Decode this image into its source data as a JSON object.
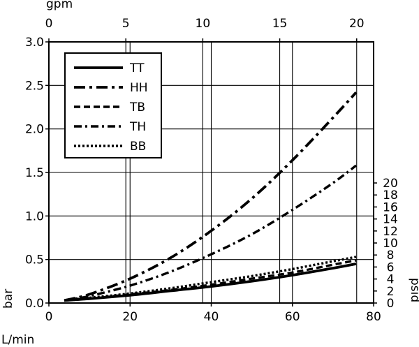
{
  "chart_data": {
    "type": "line",
    "xlabel": "L/min",
    "ylabel": "bar",
    "x2label": "gpm",
    "y2label": "psid",
    "xlim": [
      0,
      80
    ],
    "ylim": [
      0,
      3.0
    ],
    "x2lim": [
      0,
      21.1
    ],
    "y2lim": [
      0,
      43.5
    ],
    "grid": true,
    "legend_position": "top-left",
    "x_ticks": [
      "0",
      "20",
      "40",
      "60",
      "80"
    ],
    "y_ticks": [
      "0.0",
      "0.5",
      "1.0",
      "1.5",
      "2.0",
      "2.5",
      "3.0"
    ],
    "x2_ticks": [
      "0",
      "5",
      "10",
      "15",
      "20"
    ],
    "y2_ticks": [
      "0",
      "2",
      "4",
      "6",
      "8",
      "10",
      "12",
      "14",
      "16",
      "18",
      "20"
    ],
    "series": [
      {
        "name": "TT",
        "dash": "solid",
        "x": [
          3.8,
          10,
          20,
          30,
          40,
          50,
          60,
          70,
          75.7
        ],
        "y": [
          0.03,
          0.05,
          0.09,
          0.14,
          0.19,
          0.25,
          0.32,
          0.4,
          0.45
        ]
      },
      {
        "name": "HH",
        "dash": "long-dash-dot",
        "x": [
          3.8,
          10,
          20,
          30,
          40,
          50,
          60,
          70,
          75.7
        ],
        "y": [
          0.03,
          0.1,
          0.28,
          0.52,
          0.83,
          1.2,
          1.64,
          2.13,
          2.42
        ]
      },
      {
        "name": "TB",
        "dash": "dash",
        "x": [
          3.8,
          10,
          20,
          30,
          40,
          50,
          60,
          70,
          75.7
        ],
        "y": [
          0.03,
          0.05,
          0.1,
          0.15,
          0.21,
          0.28,
          0.35,
          0.44,
          0.49
        ]
      },
      {
        "name": "TH",
        "dash": "dash-dot",
        "x": [
          3.8,
          10,
          20,
          30,
          40,
          50,
          60,
          70,
          75.7
        ],
        "y": [
          0.03,
          0.08,
          0.2,
          0.36,
          0.56,
          0.79,
          1.07,
          1.38,
          1.58
        ]
      },
      {
        "name": "BB",
        "dash": "dot",
        "x": [
          3.8,
          10,
          20,
          30,
          40,
          50,
          60,
          70,
          75.7
        ],
        "y": [
          0.03,
          0.06,
          0.11,
          0.17,
          0.24,
          0.31,
          0.39,
          0.48,
          0.53
        ]
      }
    ]
  }
}
